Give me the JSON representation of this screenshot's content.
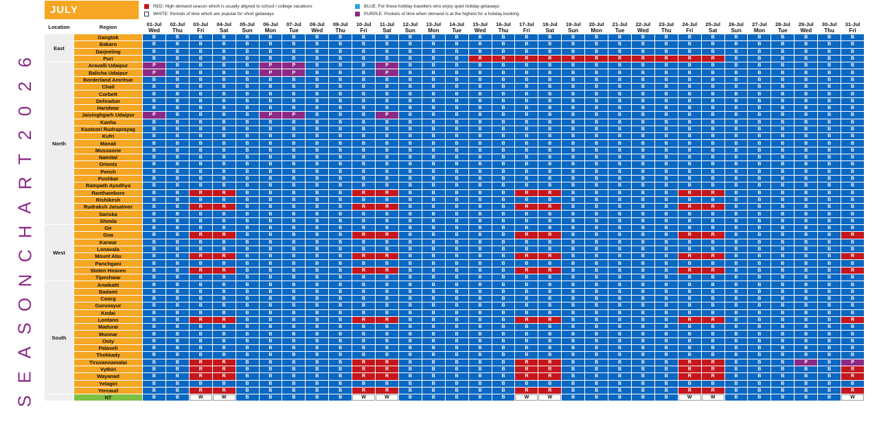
{
  "month": "JULY",
  "vertical_title": "SEASON CHART 2026",
  "legend": [
    {
      "code": "R",
      "color": "#c4161c",
      "text": "RED: High demand season which is usually aligned to school / college vacations"
    },
    {
      "code": "W",
      "color": "#ffffff",
      "text": "WHITE: Periods of time which are popular for short getaways"
    },
    {
      "code": "B",
      "color": "#27a9e1",
      "text": "BLUE: For those holiday travellers who enjoy quiet holiday getaways"
    },
    {
      "code": "P",
      "color": "#8b2a86",
      "text": "PURPLE: Pockets of time when demand is at the highest for a holiday booking"
    }
  ],
  "chart_data": {
    "type": "table",
    "columns": {
      "location": "Location",
      "region": "Region"
    },
    "dates": [
      "01-Jul",
      "02-Jul",
      "03-Jul",
      "04-Jul",
      "05-Jul",
      "06-Jul",
      "07-Jul",
      "08-Jul",
      "09-Jul",
      "10-Jul",
      "11-Jul",
      "12-Jul",
      "13-Jul",
      "14-Jul",
      "15-Jul",
      "16-Jul",
      "17-Jul",
      "18-Jul",
      "19-Jul",
      "20-Jul",
      "21-Jul",
      "22-Jul",
      "23-Jul",
      "24-Jul",
      "25-Jul",
      "26-Jul",
      "27-Jul",
      "28-Jul",
      "29-Jul",
      "30-Jul",
      "31-Jul"
    ],
    "weekdays": [
      "Wed",
      "Thu",
      "Fri",
      "Sat",
      "Sun",
      "Mon",
      "Tue",
      "Wed",
      "Thu",
      "Fri",
      "Sat",
      "Sun",
      "Mon",
      "Tue",
      "Wed",
      "Thu",
      "Fri",
      "Sat",
      "Sun",
      "Mon",
      "Tue",
      "Wed",
      "Thu",
      "Fri",
      "Sat",
      "Sun",
      "Mon",
      "Tue",
      "Wed",
      "Thu",
      "Fri"
    ],
    "groups": [
      {
        "location": "East",
        "regions": [
          {
            "name": "Gangtok",
            "cells": "BBBBBBBBBBBBBBBBBBBBBBBBBBBBBBB"
          },
          {
            "name": "Bakaro",
            "cells": "BBBBBBBBBBBBBBBBBBBBBBBBBBBBBBB"
          },
          {
            "name": "Darjeeling",
            "cells": "BBBBBBBBBBBBBBBBBBBBBBBBBBBBBBB"
          },
          {
            "name": "Puri",
            "cells": "BBBBBBBBBBBBBBRRRRRRRRRRRBBBBBB"
          }
        ]
      },
      {
        "location": "North",
        "regions": [
          {
            "name": "Aravalli Udaipur",
            "cells": "PBBBBPPBBBPBBBBBBBBBBBBBBBBBBBB"
          },
          {
            "name": "Balicha Udaipur",
            "cells": "PBBBBPPBBBPBBBBBBBBBBBBBBBBBBBB"
          },
          {
            "name": "Borderland Amritsar",
            "cells": "BBBBBBBBBBBBBBBBBBBBBBBBBBBBBBB"
          },
          {
            "name": "Chail",
            "cells": "BBBBBBBBBBBBBBBBBBBBBBBBBBBBBBB"
          },
          {
            "name": "Corbett",
            "cells": "BBBBBBBBBBBBBBBBBBBBBBBBBBBBBBB"
          },
          {
            "name": "Dehradun",
            "cells": "BBBBBBBBBBBBBBBBBBBBBBBBBBBBBBB"
          },
          {
            "name": "Haridwar",
            "cells": "BBBBBBBBBBBBBBBBBBBBBBBBBBBBBBB"
          },
          {
            "name": "Jaisinghgarh Udaipur",
            "cells": "PBBBBPPBBBPBBBBBBBBBBBBBBBBBBBB"
          },
          {
            "name": "Kanha",
            "cells": "BBBBBBBBBBBBBBBBBBBBBBBBBBBBBBB"
          },
          {
            "name": "Kastoori Rudraprayag",
            "cells": "BBBBBBBBBBBBBBBBBBBBBBBBBBBBBBB"
          },
          {
            "name": "Kufri",
            "cells": "BBBBBBBBBBBBBBBBBBBBBBBBBBBBBBB"
          },
          {
            "name": "Manali",
            "cells": "BBBBBBBBBBBBBBBBBBBBBBBBBBBBBBB"
          },
          {
            "name": "Mussoorie",
            "cells": "BBBBBBBBBBBBBBBBBBBBBBBBBBBBBBB"
          },
          {
            "name": "Nainital",
            "cells": "BBBBBBBBBBBBBBBBBBBBBBBBBBBBBBB"
          },
          {
            "name": "Orients",
            "cells": "BBBBBBBBBBBBBBBBBBBBBBBBBBBBBBB"
          },
          {
            "name": "Pench",
            "cells": "BBBBBBBBBBBBBBBBBBBBBBBBBBBBBBB"
          },
          {
            "name": "Pushkar",
            "cells": "BBBBBBBBBBBBBBBBBBBBBBBBBBBBBBB"
          },
          {
            "name": "Rampath Ayodhya",
            "cells": "BBBBBBBBBBBBBBBBBBBBBBBBBBBBBBB"
          },
          {
            "name": "Ranthambore",
            "cells": "BBRRBBBBBRRBBBBBRRBBBBBRRBBBBBB"
          },
          {
            "name": "Rishikesh",
            "cells": "BBBBBBBBBBBBBBBBBBBBBBBBBBBBBBB"
          },
          {
            "name": "Rudraksh Jaisalmer",
            "cells": "BBRRBBBBBRRBBBBBRRBBBBBRRBBBBBB"
          },
          {
            "name": "Sariska",
            "cells": "BBBBBBBBBBBBBBBBBBBBBBBBBBBBBBB"
          },
          {
            "name": "Shimla",
            "cells": "BBBBBBBBBBBBBBBBBBBBBBBBBBBBBBB"
          }
        ]
      },
      {
        "location": "West",
        "regions": [
          {
            "name": "Gir",
            "cells": "BBBBBBBBBBBBBBBBBBBBBBBBBBBBBBB"
          },
          {
            "name": "Goa",
            "cells": "BBRRBBBBBRRBBBBBRRBBBBBRRBBBBBR"
          },
          {
            "name": "Karwar",
            "cells": "BBBBBBBBBBBBBBBBBBBBBBBBBBBBBBB"
          },
          {
            "name": "Lonavala",
            "cells": "BBBBBBBBBBBBBBBBBBBBBBBBBBBBBBB"
          },
          {
            "name": "Mount Abu",
            "cells": "BBRRBBBBBRRBBBBBRRBBBBBRRBBBBBR"
          },
          {
            "name": "Panchgani",
            "cells": "BBBBBBBBBBBBBBBBBBBBBBBBBBBBBBB"
          },
          {
            "name": "Stolen Heaven",
            "cells": "BBRRBBBBBRRBBBBBRRBBBBBRRBBBBBR"
          },
          {
            "name": "Tipeshwar",
            "cells": "BBBBBBBBBBBBBBBBBBBBBBBBBBBBBBB"
          }
        ]
      },
      {
        "location": "South",
        "regions": [
          {
            "name": "Anaikatti",
            "cells": "BBBBBBBBBBBBBBBBBBBBBBBBBBBBBBB"
          },
          {
            "name": "Badami",
            "cells": "BBBBBBBBBBBBBBBBBBBBBBBBBBBBBBB"
          },
          {
            "name": "Coorg",
            "cells": "BBBBBBBBBBBBBBBBBBBBBBBBBBBBBBB"
          },
          {
            "name": "Guruvayur",
            "cells": "BBBBBBBBBBBBBBBBBBBBBBBBBBBBBBB"
          },
          {
            "name": "Kodai",
            "cells": "BBBBBBBBBBBBBBBBBBBBBBBBBBBBBBB"
          },
          {
            "name": "Lontano",
            "cells": "BBRRBBBBBRRBBBBBRRBBBBBRRBBBBBR"
          },
          {
            "name": "Madurai",
            "cells": "BBBBBBBBBBBBBBBBBBBBBBBBBBBBBBB"
          },
          {
            "name": "Munnar",
            "cells": "BBBBBBBBBBBBBBBBBBBBBBBBBBBBBBB"
          },
          {
            "name": "Ooty",
            "cells": "BBBBBBBBBBBBBBBBBBBBBBBBBBBBBBB"
          },
          {
            "name": "Palaveli",
            "cells": "BBBBBBBBBBBBBBBBBBBBBBBBBBBBBBB"
          },
          {
            "name": "Thekkady",
            "cells": "BBBBBBBBBBBBBBBBBBBBBBBBBBBBBBB"
          },
          {
            "name": "Tiruvannamalai",
            "cells": "BBRRBBBBBRRBBBBBRRBBBBBRRBBBPBP"
          },
          {
            "name": "Vythiri",
            "cells": "BBRRBBBBBRRBBBBBRRBBBBBRRBBBBBR"
          },
          {
            "name": "Wayanad",
            "cells": "BBRRBBBBBRRBBBBBRRBBBBBRRBBBBBR"
          },
          {
            "name": "Yelagiri",
            "cells": "BBBBBBBBBBBBBBBBBBBBBBBBBBBBBBB"
          },
          {
            "name": "Yercaud",
            "cells": "BBRRBBBBBRRBBBBBRRBBBBBRRBBBBBR"
          }
        ]
      },
      {
        "location": "",
        "regions": [
          {
            "name": "NT",
            "cells": "BBWWBBBBBWWBBBBBWWBBBBBWWBBBBBW"
          }
        ]
      }
    ]
  }
}
